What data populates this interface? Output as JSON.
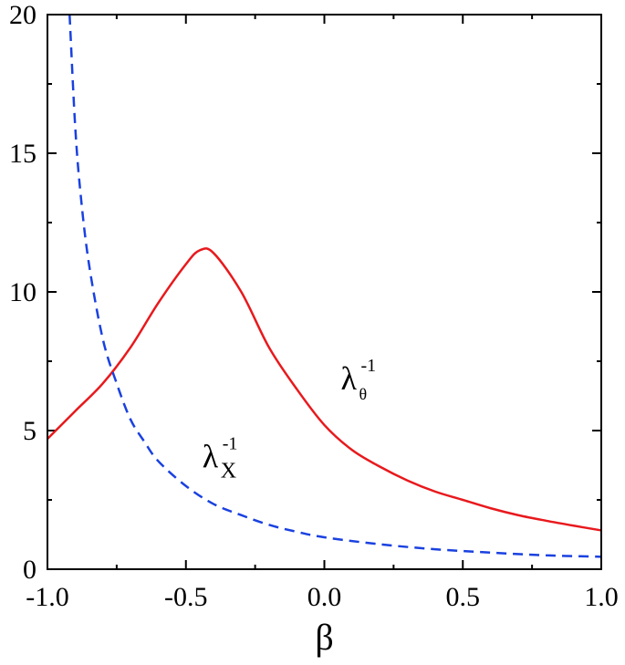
{
  "chart_data": {
    "type": "line",
    "title": "",
    "xlabel": "β",
    "ylabel": "",
    "xlim": [
      -1.0,
      1.0
    ],
    "ylim": [
      0,
      20
    ],
    "x_ticks": [
      -1.0,
      -0.5,
      0.0,
      0.5,
      1.0
    ],
    "x_tick_labels": [
      "-1.0",
      "-0.5",
      "0.0",
      "0.5",
      "1.0"
    ],
    "y_ticks": [
      0,
      5,
      10,
      15,
      20
    ],
    "y_tick_labels": [
      "0",
      "5",
      "10",
      "15",
      "20"
    ],
    "grid": false,
    "series": [
      {
        "color": "#e8191d",
        "dash": "solid",
        "x": [
          -1.0,
          -0.9,
          -0.8,
          -0.7,
          -0.6,
          -0.5,
          -0.45,
          -0.4,
          -0.3,
          -0.2,
          -0.1,
          0.0,
          0.1,
          0.2,
          0.3,
          0.4,
          0.5,
          0.6,
          0.7,
          0.8,
          0.9,
          1.0
        ],
        "y": [
          4.7,
          5.7,
          6.7,
          8.0,
          9.6,
          11.0,
          11.5,
          11.4,
          10.0,
          8.0,
          6.5,
          5.2,
          4.3,
          3.7,
          3.2,
          2.8,
          2.5,
          2.2,
          1.95,
          1.75,
          1.57,
          1.4
        ]
      },
      {
        "color": "#1a41e0",
        "dash": "dashed",
        "x": [
          -0.92,
          -0.9,
          -0.88,
          -0.85,
          -0.8,
          -0.75,
          -0.7,
          -0.65,
          -0.6,
          -0.5,
          -0.4,
          -0.3,
          -0.2,
          -0.1,
          0.0,
          0.2,
          0.4,
          0.6,
          0.8,
          1.0
        ],
        "y": [
          20.0,
          16.0,
          13.5,
          11.0,
          8.3,
          6.7,
          5.4,
          4.6,
          3.9,
          3.0,
          2.35,
          1.95,
          1.6,
          1.35,
          1.15,
          0.9,
          0.72,
          0.6,
          0.5,
          0.45
        ]
      }
    ],
    "annotations": [
      {
        "id": "theta",
        "symbol": "λ",
        "superscript": "-1",
        "subscript": "θ",
        "x": 0.0,
        "y": 7.0
      },
      {
        "id": "x",
        "symbol": "λ",
        "superscript": "-1",
        "subscript": "X",
        "x": -0.5,
        "y": 4.2
      }
    ]
  }
}
